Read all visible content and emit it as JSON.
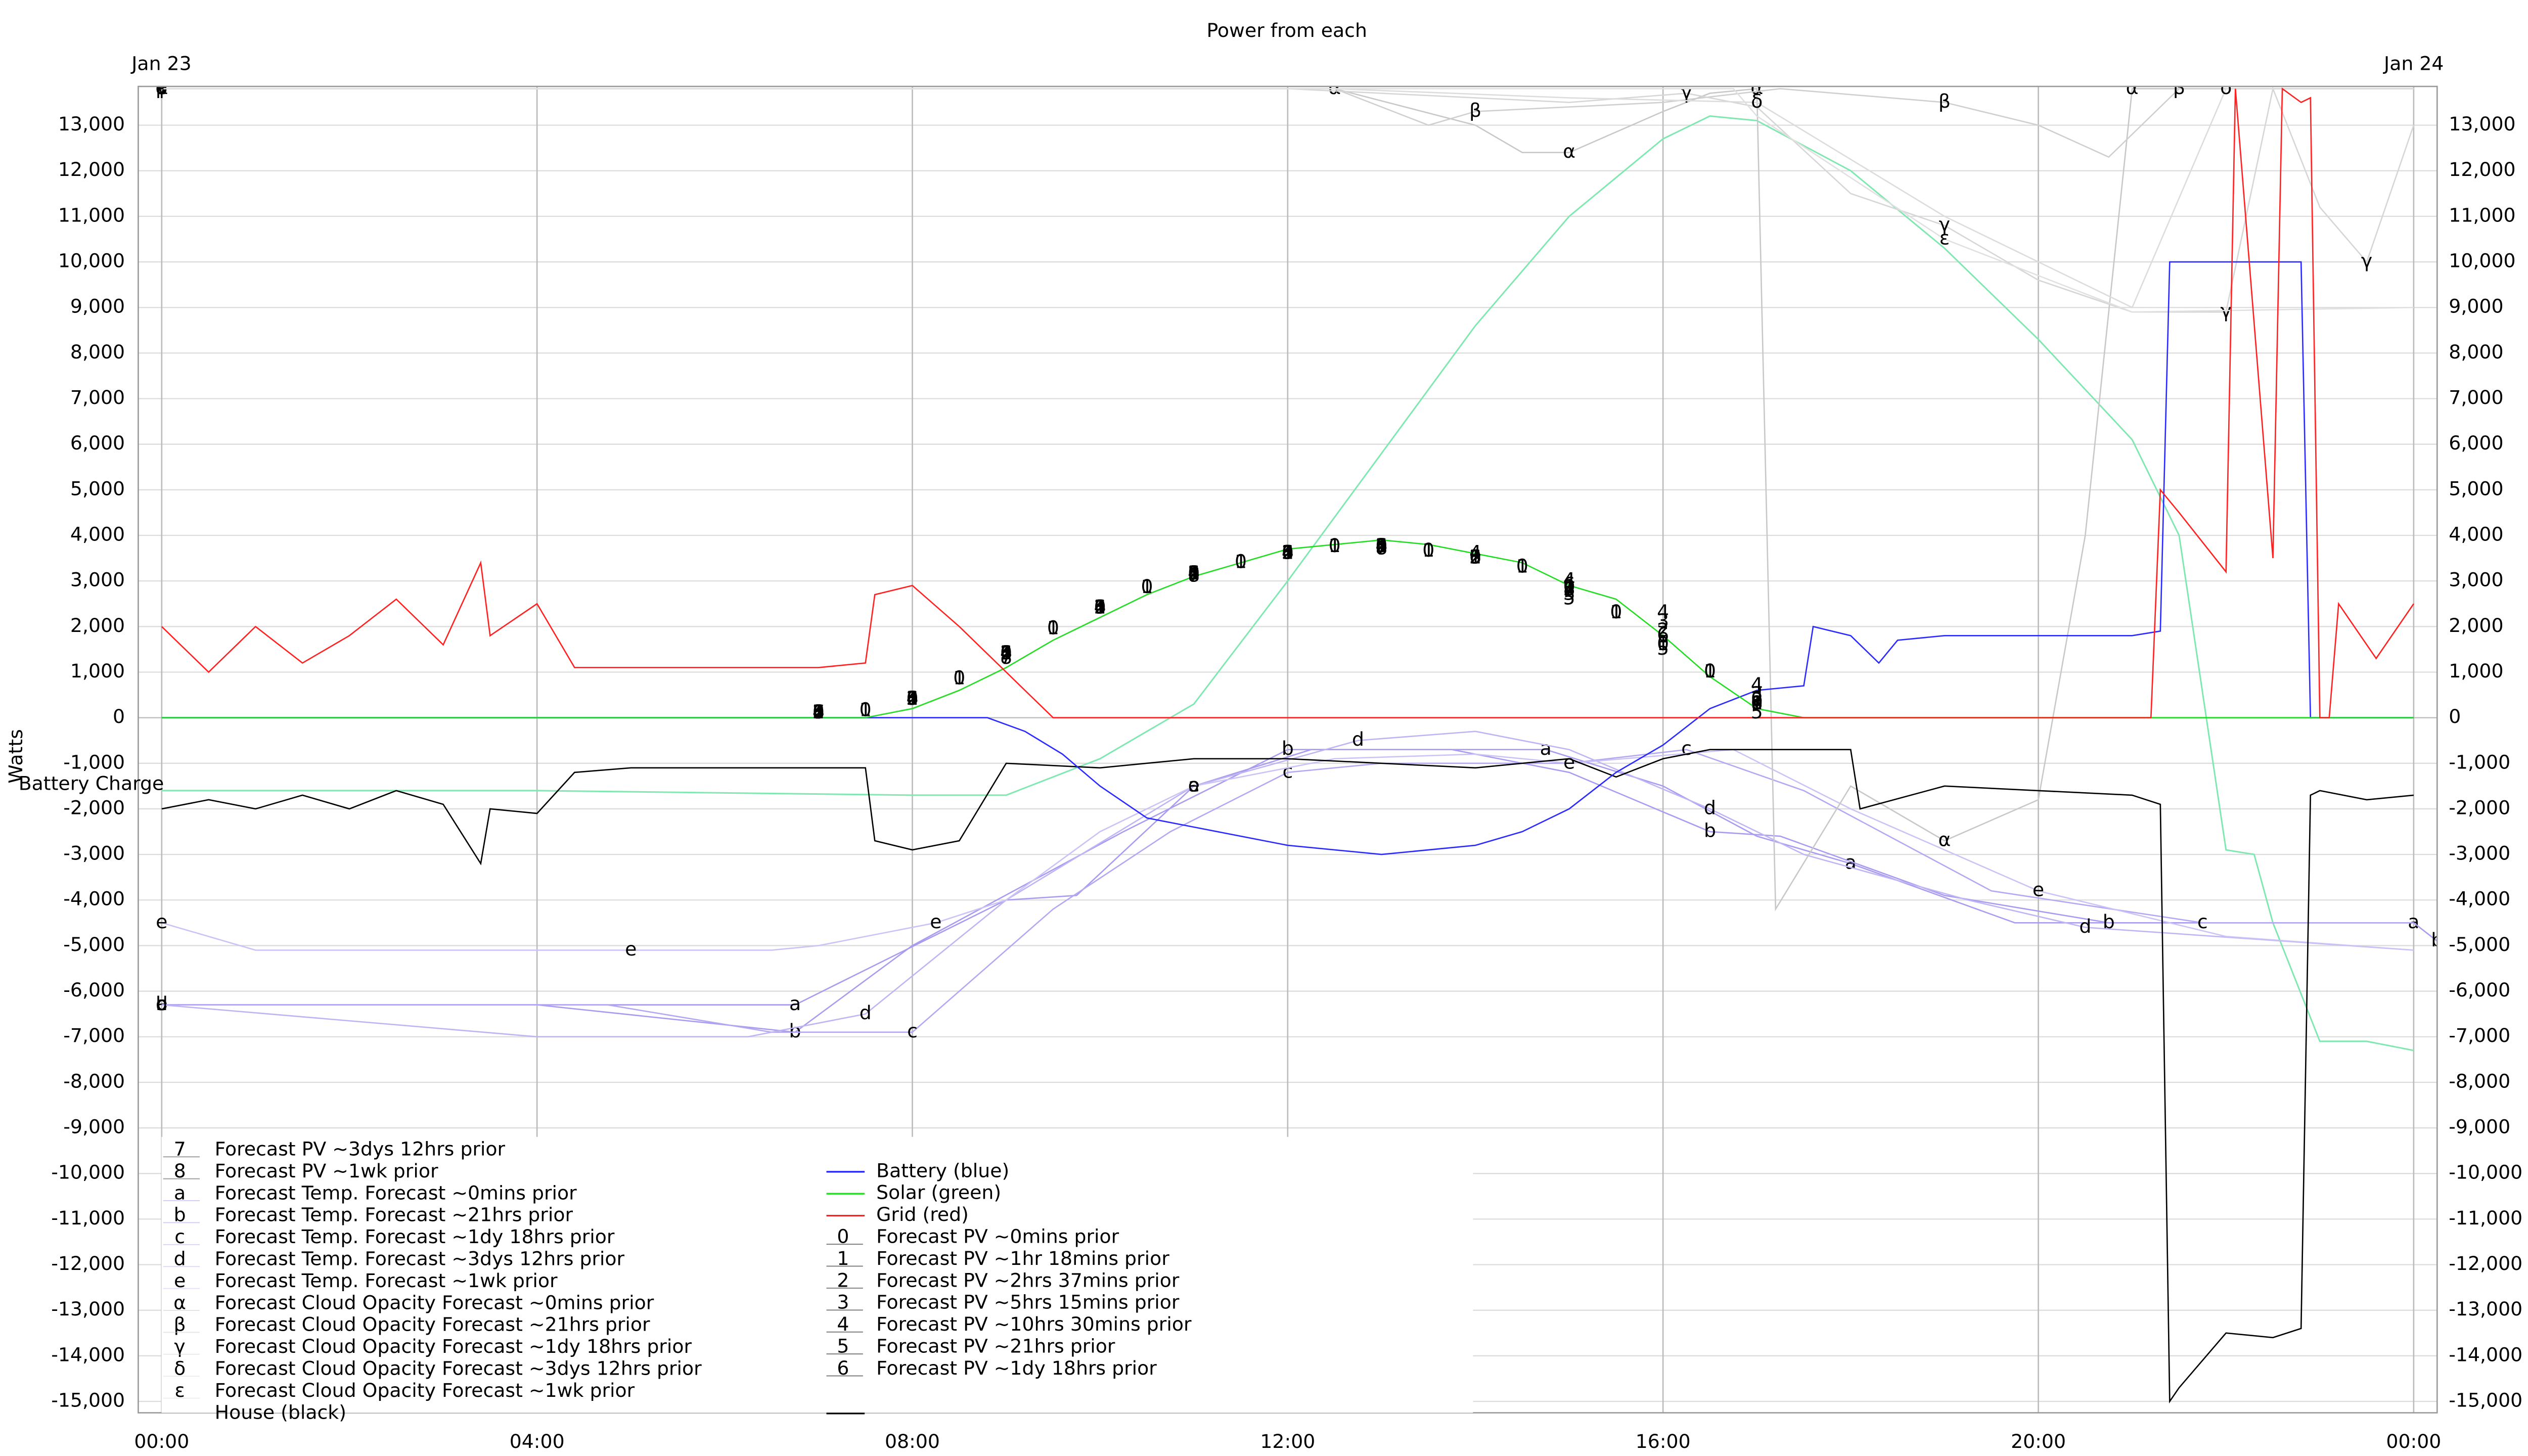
{
  "chart_data": {
    "type": "line",
    "title": "Power from each",
    "y_label": "Watts",
    "date_labels": [
      "Jan 23",
      "Jan 24"
    ],
    "grid": true,
    "xlim": [
      -0.25,
      24.25
    ],
    "xticks": [
      {
        "value": 0,
        "label": "00:00"
      },
      {
        "value": 4,
        "label": "04:00"
      },
      {
        "value": 8,
        "label": "08:00"
      },
      {
        "value": 12,
        "label": "12:00"
      },
      {
        "value": 16,
        "label": "16:00"
      },
      {
        "value": 20,
        "label": "20:00"
      },
      {
        "value": 24,
        "label": "00:00"
      }
    ],
    "ylim": [
      -15250,
      13850
    ],
    "yticks": [
      {
        "value": -15000,
        "label": "-15,000"
      },
      {
        "value": -14000,
        "label": "-14,000"
      },
      {
        "value": -13000,
        "label": "-13,000"
      },
      {
        "value": -12000,
        "label": "-12,000"
      },
      {
        "value": -11000,
        "label": "-11,000"
      },
      {
        "value": -10000,
        "label": "-10,000"
      },
      {
        "value": -9000,
        "label": "-9,000"
      },
      {
        "value": -8000,
        "label": "-8,000"
      },
      {
        "value": -7000,
        "label": "-7,000"
      },
      {
        "value": -6000,
        "label": "-6,000"
      },
      {
        "value": -5000,
        "label": "-5,000"
      },
      {
        "value": -4000,
        "label": "-4,000"
      },
      {
        "value": -3000,
        "label": "-3,000"
      },
      {
        "value": -2000,
        "label": "-2,000"
      },
      {
        "value": -1000,
        "label": "-1,000"
      },
      0,
      {
        "value": 1000,
        "label": "1,000"
      },
      {
        "value": 2000,
        "label": "2,000"
      },
      {
        "value": 3000,
        "label": "3,000"
      },
      {
        "value": 4000,
        "label": "4,000"
      },
      {
        "value": 5000,
        "label": "5,000"
      },
      {
        "value": 6000,
        "label": "6,000"
      },
      {
        "value": 7000,
        "label": "7,000"
      },
      {
        "value": 8000,
        "label": "8,000"
      },
      {
        "value": 9000,
        "label": "9,000"
      },
      {
        "value": 10000,
        "label": "10,000"
      },
      {
        "value": 11000,
        "label": "11,000"
      },
      {
        "value": 12000,
        "label": "12,000"
      },
      {
        "value": 13000,
        "label": "13,000"
      }
    ],
    "overlay": {
      "label": "Battery Charge",
      "color": "#7fe8b0",
      "x": [
        0,
        4,
        8,
        9,
        10,
        11,
        12,
        13,
        14,
        15,
        16,
        16.5,
        17,
        18,
        19,
        20,
        21,
        21.5,
        22,
        22.3,
        22.5,
        23,
        23.5,
        24
      ],
      "values": [
        -1600,
        -1600,
        -1700,
        -1700,
        -900,
        300,
        3000,
        5800,
        8600,
        11000,
        12700,
        13200,
        13100,
        12000,
        10300,
        8300,
        6100,
        4000,
        -2900,
        -3000,
        -4500,
        -7100,
        -7100,
        -7300
      ]
    },
    "series": [
      {
        "name": "Forecast PV ~3dys 12hrs prior",
        "marker": "7",
        "color": "#444444",
        "style": "points",
        "x": [
          7,
          9,
          11,
          13,
          15,
          17
        ],
        "values": [
          100,
          1300,
          3100,
          3700,
          2800,
          300
        ]
      },
      {
        "name": "Forecast PV ~1wk prior",
        "marker": "8",
        "color": "#444444",
        "style": "points",
        "x": [
          7,
          9,
          11,
          13,
          15,
          17
        ],
        "values": [
          100,
          1300,
          3100,
          3700,
          2800,
          300
        ]
      },
      {
        "name": "Forecast Temp. Forecast ~0mins prior",
        "marker": "a",
        "color": "#a89cf0",
        "x": [
          0,
          2.25,
          4.75,
          6.75,
          9,
          9.75,
          11,
          12.25,
          14,
          14.75,
          16,
          17,
          18,
          19.75,
          22,
          24
        ],
        "values": [
          -6300,
          -6300,
          -6300,
          -6300,
          -4000,
          -3900,
          -1500,
          -700,
          -700,
          -700,
          -1500,
          -2600,
          -3200,
          -4500,
          -4500,
          -4500
        ]
      },
      {
        "name": "Forecast Temp. Forecast ~21hrs prior",
        "marker": "b",
        "color": "#a89cf0",
        "x": [
          0,
          2.25,
          4,
          6.75,
          8,
          10.25,
          12,
          13.75,
          15,
          16.5,
          17.25,
          19,
          20.75,
          22,
          24,
          24.25
        ],
        "values": [
          -6300,
          -6300,
          -6300,
          -6900,
          -5000,
          -2500,
          -700,
          -700,
          -1200,
          -2500,
          -2600,
          -3900,
          -4500,
          -4500,
          -4500,
          -4900
        ]
      },
      {
        "name": "Forecast Temp. Forecast ~1dy 18hrs prior",
        "marker": "c",
        "color": "#b4a8f2",
        "x": [
          0,
          4.75,
          6.5,
          8,
          9.5,
          10.75,
          12,
          13,
          15,
          16.25,
          17.5,
          19.5,
          21.75,
          24
        ],
        "values": [
          -6300,
          -6300,
          -6900,
          -6900,
          -4200,
          -2500,
          -1200,
          -1000,
          -1000,
          -700,
          -1600,
          -3800,
          -4500,
          -4500
        ]
      },
      {
        "name": "Forecast Temp. Forecast ~3dys 12hrs prior",
        "marker": "d",
        "color": "#c0b4f4",
        "x": [
          0,
          4,
          6.25,
          7.5,
          9,
          11,
          12.75,
          14,
          15,
          16.5,
          17.5,
          19.25,
          20.5,
          24
        ],
        "values": [
          -6300,
          -7000,
          -7000,
          -6500,
          -4000,
          -1500,
          -500,
          -300,
          -700,
          -2000,
          -3000,
          -4000,
          -4600,
          -5100
        ]
      },
      {
        "name": "Forecast Temp. Forecast ~1wk prior",
        "marker": "e",
        "color": "#ccc2f6",
        "x": [
          0,
          1,
          3,
          5,
          6.5,
          7,
          8.25,
          9,
          10,
          11,
          12.5,
          14,
          15,
          16.75,
          18,
          20,
          22,
          24
        ],
        "values": [
          -4500,
          -5100,
          -5100,
          -5100,
          -5100,
          -5000,
          -4500,
          -4000,
          -2500,
          -1500,
          -900,
          -800,
          -1000,
          -700,
          -2000,
          -3800,
          -4800,
          -5100
        ]
      },
      {
        "name": "Forecast Cloud Opacity Forecast ~0mins prior",
        "marker": "α",
        "color": "#c8c8c8",
        "x": [
          0,
          5,
          9,
          12.5,
          14,
          14.5,
          15,
          16,
          16.5,
          17,
          17.2,
          18,
          19,
          20,
          20.5,
          21,
          24
        ],
        "values": [
          13800,
          13800,
          13800,
          13800,
          13000,
          12400,
          12400,
          13300,
          13700,
          13800,
          -4200,
          -1500,
          -2700,
          -1800,
          4000,
          13800,
          13800
        ]
      },
      {
        "name": "Forecast Cloud Opacity Forecast ~21hrs prior",
        "marker": "β",
        "color": "#cfcfcf",
        "x": [
          0,
          12.5,
          13.5,
          14,
          16,
          17.25,
          19,
          20,
          20.75,
          21.5,
          24
        ],
        "values": [
          13800,
          13800,
          13000,
          13300,
          13500,
          13800,
          13500,
          13000,
          12300,
          13800,
          13800
        ]
      },
      {
        "name": "Forecast Cloud Opacity Forecast ~1dy 18hrs prior",
        "marker": "γ",
        "color": "#d6d6d6",
        "x": [
          0,
          12,
          15,
          16.25,
          17,
          18,
          19,
          20,
          21,
          22,
          22.5,
          23,
          23.5,
          24
        ],
        "values": [
          13800,
          13800,
          13500,
          13700,
          13400,
          11500,
          10800,
          9600,
          8900,
          8900,
          13800,
          11200,
          10000,
          13000
        ]
      },
      {
        "name": "Forecast Cloud Opacity Forecast ~3dys 12hrs prior",
        "marker": "δ",
        "color": "#dcdcdc",
        "x": [
          0,
          12.5,
          15,
          17,
          19,
          21,
          22,
          24
        ],
        "values": [
          13800,
          13800,
          13600,
          13500,
          11000,
          9000,
          13800,
          13800
        ]
      },
      {
        "name": "Forecast Cloud Opacity Forecast ~1wk prior",
        "marker": "ε",
        "color": "#e0e0e0",
        "x": [
          0,
          16.75,
          17,
          19,
          21,
          24
        ],
        "values": [
          13800,
          13800,
          13200,
          10500,
          8900,
          9000
        ]
      },
      {
        "name": "House (black)",
        "color": "#000000",
        "x": [
          0,
          0.5,
          1,
          1.5,
          2,
          2.5,
          3,
          3.4,
          3.5,
          4,
          4.4,
          5,
          6,
          7,
          7.5,
          7.6,
          8,
          8.5,
          9,
          10,
          11,
          12,
          13,
          14,
          15,
          15.5,
          16,
          16.5,
          17,
          17.5,
          18,
          18.1,
          19,
          20,
          21,
          21.3,
          21.4,
          21.5,
          22,
          22.5,
          22.8,
          22.9,
          23,
          23.5,
          24
        ],
        "values": [
          -2000,
          -1800,
          -2000,
          -1700,
          -2000,
          -1600,
          -1900,
          -3200,
          -2000,
          -2100,
          -1200,
          -1100,
          -1100,
          -1100,
          -1100,
          -2700,
          -2900,
          -2700,
          -1000,
          -1100,
          -900,
          -900,
          -1000,
          -1100,
          -900,
          -1300,
          -900,
          -700,
          -700,
          -700,
          -700,
          -2000,
          -1500,
          -1600,
          -1700,
          -1900,
          -15000,
          -14700,
          -13500,
          -13600,
          -13400,
          -1700,
          -1600,
          -1800,
          -1700
        ]
      },
      {
        "name": "Battery (blue)",
        "color": "#2a2aff",
        "x": [
          0,
          4,
          8,
          8.8,
          9.2,
          9.6,
          10,
          10.5,
          11,
          12,
          13,
          14,
          14.5,
          15,
          15.5,
          16,
          16.5,
          17,
          17.5,
          17.6,
          18,
          18.3,
          18.5,
          19,
          20,
          21,
          21.3,
          21.4,
          22.5,
          22.6,
          22.8,
          22.9,
          24
        ],
        "values": [
          0,
          0,
          0,
          0,
          -300,
          -800,
          -1500,
          -2200,
          -2400,
          -2800,
          -3000,
          -2800,
          -2500,
          -2000,
          -1200,
          -600,
          200,
          600,
          700,
          2000,
          1800,
          1200,
          1700,
          1800,
          1800,
          1800,
          1900,
          10000,
          10000,
          10000,
          10000,
          0,
          0
        ]
      },
      {
        "name": "Solar (green)",
        "color": "#22dd22",
        "x": [
          0,
          7.5,
          8,
          8.5,
          9,
          9.5,
          10,
          10.5,
          11,
          11.5,
          12,
          12.5,
          13,
          13.5,
          14,
          14.5,
          15,
          15.5,
          16,
          16.5,
          17,
          17.5,
          24
        ],
        "values": [
          0,
          0,
          200,
          600,
          1100,
          1700,
          2200,
          2700,
          3100,
          3400,
          3700,
          3800,
          3900,
          3800,
          3600,
          3400,
          2900,
          2600,
          1800,
          900,
          200,
          0,
          0
        ]
      },
      {
        "name": "Grid (red)",
        "color": "#ff2020",
        "x": [
          0,
          0.5,
          1,
          1.5,
          2,
          2.5,
          3,
          3.4,
          3.5,
          4,
          4.4,
          5,
          6,
          7,
          7.5,
          7.6,
          8,
          8.5,
          9,
          9.5,
          21.2,
          21.3,
          21.5,
          22,
          22.1,
          22.5,
          22.6,
          22.8,
          22.9,
          23,
          23.1,
          23.2,
          23.6,
          24
        ],
        "values": [
          2000,
          1000,
          2000,
          1200,
          1800,
          2600,
          1600,
          3400,
          1800,
          2500,
          1100,
          1100,
          1100,
          1100,
          1200,
          2700,
          2900,
          2000,
          1000,
          0,
          0,
          5000,
          4500,
          3200,
          13800,
          3500,
          13800,
          13500,
          13600,
          0,
          0,
          2500,
          1300,
          2500
        ]
      },
      {
        "name": "Forecast PV ~0mins prior",
        "marker": "0",
        "color": "#000000",
        "style": "points",
        "x": [
          7,
          7.5,
          8,
          8.5,
          9,
          9.5,
          10,
          10.5,
          11,
          11.5,
          12,
          12.5,
          13,
          13.5,
          14,
          14.5,
          15,
          15.5,
          16,
          16.5,
          17
        ],
        "values": [
          100,
          150,
          400,
          850,
          1400,
          1950,
          2400,
          2850,
          3150,
          3400,
          3600,
          3750,
          3750,
          3650,
          3500,
          3300,
          2850,
          2300,
          1600,
          1000,
          300
        ]
      },
      {
        "name": "Forecast PV ~1hr 18mins prior",
        "marker": "1",
        "color": "#000000",
        "style": "points",
        "x": [
          7,
          7.5,
          8,
          8.5,
          9,
          9.5,
          10,
          10.5,
          11,
          11.5,
          12,
          12.5,
          13,
          13.5,
          14,
          14.5,
          15,
          15.5,
          16,
          16.5,
          17
        ],
        "values": [
          100,
          150,
          400,
          850,
          1400,
          1950,
          2400,
          2850,
          3150,
          3400,
          3600,
          3750,
          3750,
          3650,
          3500,
          3300,
          2850,
          2300,
          1600,
          1000,
          300
        ]
      },
      {
        "name": "Forecast PV ~2hrs 37mins prior",
        "marker": "2",
        "color": "#000000",
        "style": "points",
        "x": [
          7,
          8,
          9,
          10,
          11,
          12,
          13,
          14,
          15,
          16,
          17
        ],
        "values": [
          100,
          400,
          1400,
          2400,
          3150,
          3600,
          3750,
          3500,
          2800,
          1900,
          400
        ]
      },
      {
        "name": "Forecast PV ~5hrs 15mins prior",
        "marker": "3",
        "color": "#000000",
        "style": "points",
        "x": [
          7,
          8,
          9,
          10,
          11,
          12,
          13,
          14,
          15,
          16,
          17
        ],
        "values": [
          100,
          400,
          1400,
          2400,
          3150,
          3600,
          3750,
          3500,
          2700,
          2100,
          500
        ]
      },
      {
        "name": "Forecast PV ~10hrs 30mins prior",
        "marker": "4",
        "color": "#000000",
        "style": "points",
        "x": [
          7,
          8,
          9,
          10,
          11,
          12,
          13,
          14,
          15,
          16,
          17
        ],
        "values": [
          100,
          400,
          1400,
          2400,
          3150,
          3600,
          3750,
          3600,
          3000,
          2300,
          700
        ]
      },
      {
        "name": "Forecast PV ~21hrs prior",
        "marker": "5",
        "color": "#000000",
        "style": "points",
        "x": [
          7,
          8,
          9,
          10,
          11,
          12,
          13,
          14,
          15,
          16,
          17
        ],
        "values": [
          100,
          400,
          1400,
          2400,
          3150,
          3600,
          3750,
          3500,
          2600,
          1500,
          100
        ]
      },
      {
        "name": "Forecast PV ~1dy 18hrs prior",
        "marker": "6",
        "color": "#000000",
        "style": "points",
        "x": [
          7,
          8,
          9,
          10,
          11,
          12,
          13,
          14,
          15,
          16,
          17
        ],
        "values": [
          100,
          400,
          1400,
          2400,
          3150,
          3600,
          3750,
          3500,
          2900,
          1800,
          400
        ]
      }
    ]
  }
}
